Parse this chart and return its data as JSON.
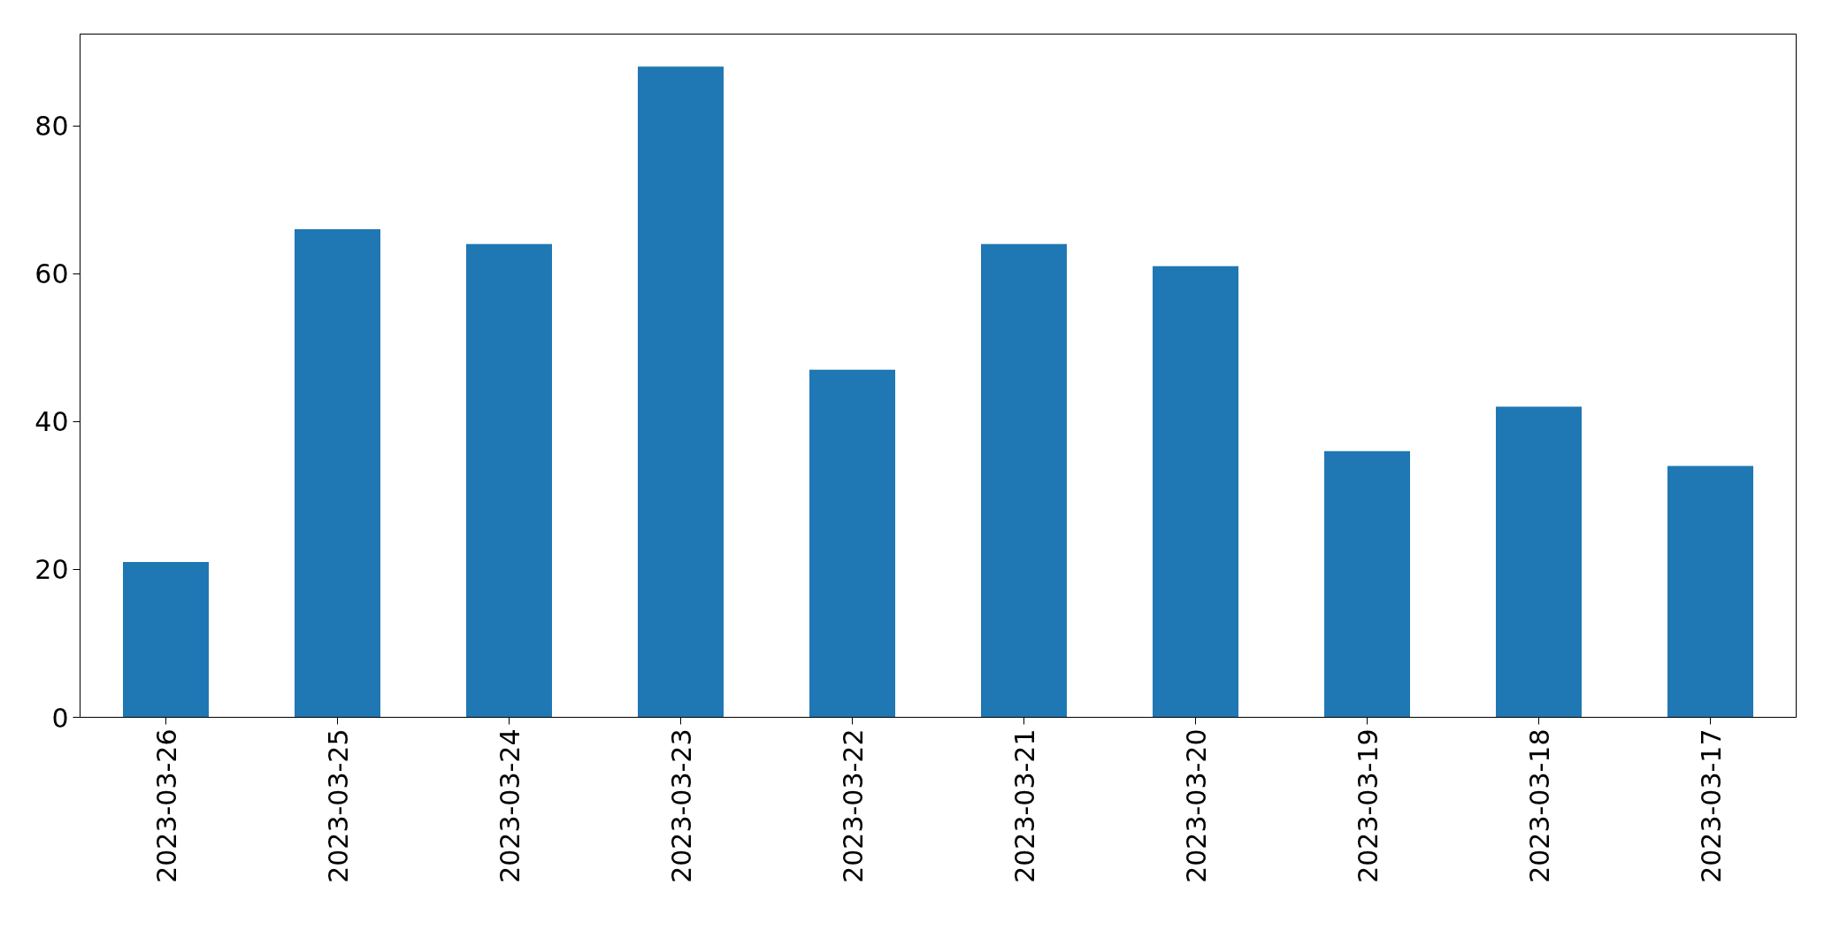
{
  "chart_data": {
    "type": "bar",
    "categories": [
      "2023-03-26",
      "2023-03-25",
      "2023-03-24",
      "2023-03-23",
      "2023-03-22",
      "2023-03-21",
      "2023-03-20",
      "2023-03-19",
      "2023-03-18",
      "2023-03-17"
    ],
    "values": [
      21,
      66,
      64,
      88,
      47,
      64,
      61,
      36,
      42,
      34
    ],
    "color": "#1f77b4",
    "ylim": [
      0,
      92.4
    ],
    "yticks": [
      0,
      20,
      40,
      60,
      80
    ],
    "grid": false
  }
}
